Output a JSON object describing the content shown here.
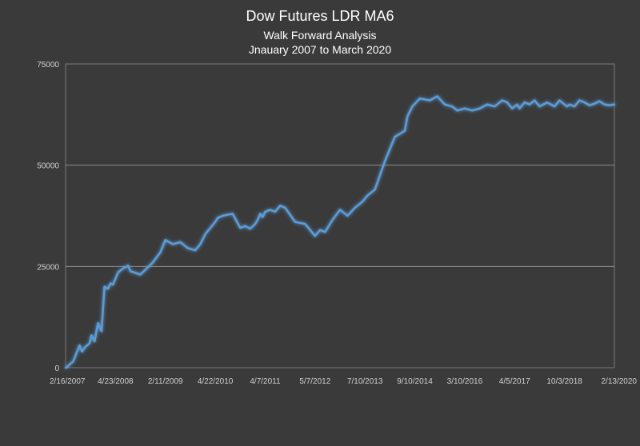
{
  "chart_data": {
    "type": "line",
    "title": "Dow Futures LDR MA6",
    "subtitle": "Walk Forward Analysis",
    "subtitle2": "Jnauary 2007 to March 2020",
    "xlabel": "",
    "ylabel": "",
    "ylim": [
      0,
      75000
    ],
    "yticks": [
      "0",
      "25000",
      "50000",
      "75000"
    ],
    "xticks": [
      "2/16/2007",
      "4/23/2008",
      "2/11/2009",
      "4/22/2010",
      "4/7/2011",
      "5/7/2012",
      "7/10/2013",
      "9/10/2014",
      "3/10/2016",
      "4/5/2017",
      "10/3/2018",
      "2/13/2020"
    ],
    "grid": true,
    "line_color": "#5b9bd5",
    "series": [
      {
        "x": [
          0,
          0.02,
          0.04,
          0.07,
          0.1,
          0.15,
          0.2,
          0.28,
          0.33,
          0.4,
          0.48,
          0.52,
          0.58,
          0.65,
          0.72,
          0.78,
          0.85,
          0.9,
          0.95,
          1.0,
          1.05,
          1.1,
          1.15,
          1.2,
          1.25,
          1.3,
          1.38,
          1.45,
          1.5,
          1.6,
          1.75,
          1.9,
          2.0,
          2.15,
          2.3,
          2.45,
          2.6,
          2.7,
          2.8,
          2.9,
          3.0,
          3.05,
          3.15,
          3.25,
          3.35,
          3.5,
          3.6,
          3.7,
          3.8,
          3.85,
          3.9,
          3.95,
          4.0,
          4.1,
          4.2,
          4.3,
          4.4,
          4.6,
          4.8,
          4.9,
          5.0,
          5.1,
          5.2,
          5.35,
          5.5,
          5.65,
          5.8,
          5.95,
          6.05,
          6.2,
          6.4,
          6.6,
          6.8,
          6.85,
          6.95,
          7.1,
          7.3,
          7.45,
          7.6,
          7.75,
          7.85,
          8.0,
          8.15,
          8.3,
          8.45,
          8.6,
          8.75,
          8.85,
          8.95,
          9.0,
          9.05,
          9.1,
          9.2,
          9.3,
          9.4,
          9.5,
          9.65,
          9.8,
          9.9,
          9.95,
          10.0,
          10.05,
          10.1,
          10.2,
          10.3,
          10.4,
          10.5,
          10.6,
          10.7,
          10.8,
          10.9,
          11.0
        ],
        "values": [
          0,
          0,
          300,
          700,
          1000,
          1500,
          3000,
          5500,
          4000,
          5200,
          6000,
          8000,
          6500,
          11000,
          9000,
          20000,
          19500,
          20800,
          20500,
          22000,
          23500,
          24000,
          24500,
          24800,
          25200,
          23800,
          23500,
          23200,
          23000,
          24200,
          26000,
          28500,
          31500,
          30500,
          31000,
          29500,
          29000,
          30500,
          33000,
          34500,
          36000,
          37000,
          37500,
          37800,
          38000,
          34500,
          35000,
          34300,
          35500,
          36500,
          38000,
          37200,
          38500,
          39000,
          38500,
          40000,
          39500,
          36000,
          35500,
          34000,
          32500,
          34000,
          33500,
          36500,
          39000,
          37500,
          39500,
          41000,
          42500,
          44000,
          51000,
          57000,
          58500,
          62000,
          64500,
          66500,
          66000,
          67000,
          65000,
          64500,
          63500,
          64000,
          63500,
          64000,
          65000,
          64500,
          66000,
          65500,
          64000,
          64500,
          65000,
          64000,
          65500,
          65000,
          66000,
          64500,
          65500,
          64500,
          66000,
          65500,
          65000,
          64500,
          65000,
          64500,
          66000,
          65500,
          64800,
          65200,
          65800,
          65000,
          64800,
          65000
        ]
      }
    ]
  }
}
